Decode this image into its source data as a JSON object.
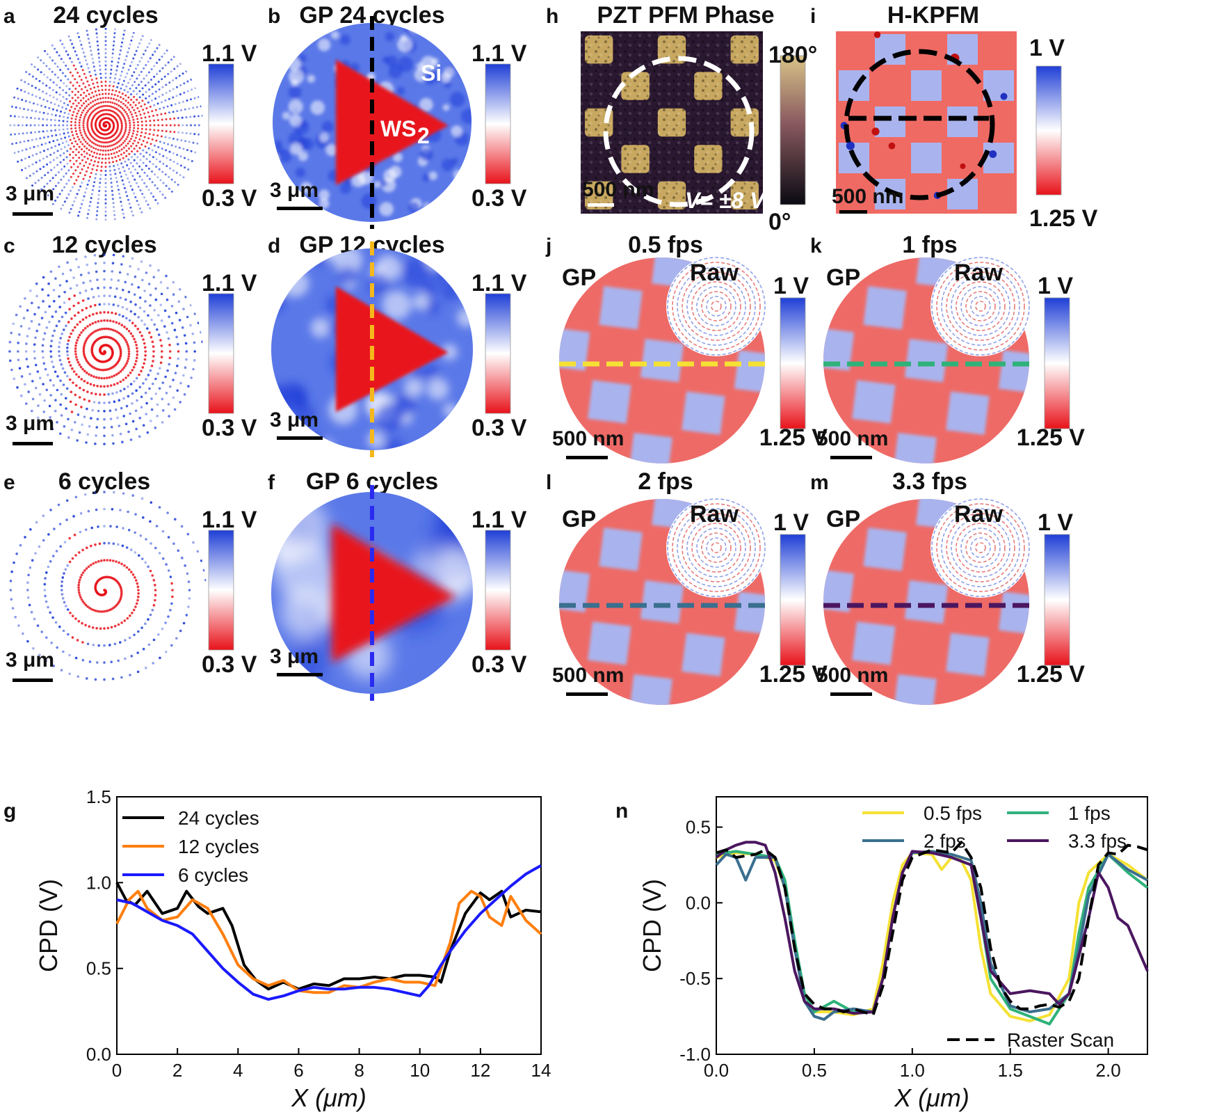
{
  "colors": {
    "cpd_low": "#1f3fd6",
    "cpd_mid": "#ffffff",
    "cpd_high": "#e8121a",
    "pfm_dark": "#2a1830",
    "pfm_light": "#c8a860",
    "line_24": "#000000",
    "line_12": "#ff7f0e",
    "line_6": "#1a1aff",
    "fps_05": "#f5e134",
    "fps_1": "#2fb27a",
    "fps_2": "#3a6f8f",
    "fps_33": "#4b1660",
    "raster": "#000000"
  },
  "panels": [
    {
      "letter": "a",
      "title": "24 cycles",
      "scale_bar": "3 μm",
      "cbar_top": "1.1 V",
      "cbar_bottom": "0.3 V",
      "kind": "spiral",
      "cycles": 24
    },
    {
      "letter": "b",
      "title": "GP 24 cycles",
      "scale_bar": "3 μm",
      "cbar_top": "1.1 V",
      "cbar_bottom": "0.3 V",
      "kind": "gp",
      "cycles": 24,
      "line_color": "#000000",
      "label_si": "Si",
      "label_ws2": "WS",
      "label_ws2_sub": "2"
    },
    {
      "letter": "c",
      "title": "12 cycles",
      "scale_bar": "3 μm",
      "cbar_top": "1.1 V",
      "cbar_bottom": "0.3 V",
      "kind": "spiral",
      "cycles": 12
    },
    {
      "letter": "d",
      "title": "GP 12 cycles",
      "scale_bar": "3 μm",
      "cbar_top": "1.1 V",
      "cbar_bottom": "0.3 V",
      "kind": "gp",
      "cycles": 12,
      "line_color": "#f5b81c"
    },
    {
      "letter": "e",
      "title": "6 cycles",
      "scale_bar": "3 μm",
      "cbar_top": "1.1 V",
      "cbar_bottom": "0.3 V",
      "kind": "spiral",
      "cycles": 6
    },
    {
      "letter": "f",
      "title": "GP 6 cycles",
      "scale_bar": "3 μm",
      "cbar_top": "1.1 V",
      "cbar_bottom": "0.3 V",
      "kind": "gp",
      "cycles": 6,
      "line_color": "#2a2af0"
    },
    {
      "letter": "h",
      "title": "PZT PFM Phase",
      "scale_bar": "500 nm",
      "cbar_top": "180°",
      "cbar_bottom": "0°",
      "kind": "pfm",
      "voltage": "V= ±8 V"
    },
    {
      "letter": "i",
      "title": "H-KPFM",
      "scale_bar": "500 nm",
      "cbar_top": "1 V",
      "cbar_bottom": "1.25 V",
      "kind": "hkpfm"
    },
    {
      "letter": "j",
      "title": "0.5 fps",
      "scale_bar": "500 nm",
      "cbar_top": "1 V",
      "cbar_bottom": "1.25 V",
      "kind": "fps",
      "line_color": "#f5e134",
      "label_gp": "GP",
      "label_raw": "Raw"
    },
    {
      "letter": "k",
      "title": "1 fps",
      "scale_bar": "500 nm",
      "cbar_top": "1 V",
      "cbar_bottom": "1.25 V",
      "kind": "fps",
      "line_color": "#2fb27a",
      "label_gp": "GP",
      "label_raw": "Raw"
    },
    {
      "letter": "l",
      "title": "2 fps",
      "scale_bar": "500 nm",
      "cbar_top": "1 V",
      "cbar_bottom": "1.25 V",
      "kind": "fps",
      "line_color": "#3a6f8f",
      "label_gp": "GP",
      "label_raw": "Raw"
    },
    {
      "letter": "m",
      "title": "3.3 fps",
      "scale_bar": "500 nm",
      "cbar_top": "1 V",
      "cbar_bottom": "1.25 V",
      "kind": "fps",
      "line_color": "#4b1660",
      "label_gp": "GP",
      "label_raw": "Raw"
    }
  ],
  "chart_data": [
    {
      "panel": "g",
      "type": "line",
      "xlabel": "X (μm)",
      "ylabel": "CPD (V)",
      "xlim": [
        0,
        14
      ],
      "ylim": [
        0.0,
        1.5
      ],
      "xticks": [
        "0",
        "2",
        "4",
        "6",
        "8",
        "10",
        "12",
        "14"
      ],
      "yticks": [
        "0.0",
        "0.5",
        "1.0",
        "1.5"
      ],
      "legend_position": "top-left",
      "series": [
        {
          "name": "24 cycles",
          "color": "#000000",
          "x": [
            0,
            0.3,
            0.6,
            1.0,
            1.5,
            2.0,
            2.3,
            2.7,
            3.0,
            3.5,
            3.8,
            4.2,
            4.6,
            5.0,
            5.5,
            6.0,
            6.5,
            7.0,
            7.5,
            8.0,
            8.5,
            9.0,
            9.5,
            10.0,
            10.5,
            10.7,
            11.0,
            11.5,
            12.0,
            12.3,
            12.7,
            13.0,
            13.5,
            14.0
          ],
          "y": [
            1.0,
            0.9,
            0.87,
            0.95,
            0.82,
            0.85,
            0.95,
            0.86,
            0.82,
            0.85,
            0.75,
            0.52,
            0.43,
            0.38,
            0.42,
            0.38,
            0.41,
            0.4,
            0.44,
            0.44,
            0.45,
            0.44,
            0.46,
            0.46,
            0.45,
            0.42,
            0.6,
            0.82,
            0.94,
            0.9,
            0.95,
            0.8,
            0.84,
            0.83
          ]
        },
        {
          "name": "12 cycles",
          "color": "#ff7f0e",
          "x": [
            0,
            0.4,
            0.7,
            1.0,
            1.5,
            2.0,
            2.5,
            3.0,
            3.5,
            4.0,
            4.5,
            5.0,
            5.5,
            6.0,
            6.5,
            7.0,
            7.5,
            8.0,
            8.5,
            9.0,
            9.5,
            10.0,
            10.5,
            11.0,
            11.3,
            11.7,
            12.0,
            12.3,
            12.7,
            13.0,
            13.5,
            14.0
          ],
          "y": [
            0.76,
            0.9,
            0.95,
            0.85,
            0.78,
            0.8,
            0.9,
            0.85,
            0.7,
            0.52,
            0.44,
            0.4,
            0.43,
            0.37,
            0.36,
            0.36,
            0.4,
            0.39,
            0.42,
            0.44,
            0.42,
            0.42,
            0.4,
            0.65,
            0.88,
            0.95,
            0.92,
            0.8,
            0.75,
            0.92,
            0.78,
            0.7
          ]
        },
        {
          "name": "6 cycles",
          "color": "#1a1aff",
          "x": [
            0,
            0.5,
            1.0,
            1.5,
            2.0,
            2.5,
            3.0,
            3.5,
            4.0,
            4.5,
            5.0,
            5.5,
            6.0,
            6.5,
            7.0,
            7.5,
            8.0,
            8.5,
            9.0,
            9.5,
            10.0,
            10.3,
            10.7,
            11.0,
            11.5,
            12.0,
            12.5,
            13.0,
            13.5,
            14.0
          ],
          "y": [
            0.9,
            0.88,
            0.83,
            0.78,
            0.75,
            0.7,
            0.6,
            0.5,
            0.42,
            0.35,
            0.32,
            0.34,
            0.37,
            0.39,
            0.38,
            0.38,
            0.39,
            0.39,
            0.38,
            0.36,
            0.34,
            0.4,
            0.52,
            0.6,
            0.72,
            0.82,
            0.9,
            0.98,
            1.05,
            1.1
          ]
        }
      ]
    },
    {
      "panel": "n",
      "type": "line",
      "xlabel": "X (μm)",
      "ylabel": "CPD (V)",
      "xlim": [
        0.0,
        2.2
      ],
      "ylim": [
        -1.0,
        0.7
      ],
      "xticks": [
        "0.0",
        "0.5",
        "1.0",
        "1.5",
        "2.0"
      ],
      "yticks": [
        "-1.0",
        "-0.5",
        "0.0",
        "0.5"
      ],
      "legend_position": "top-right",
      "series": [
        {
          "name": "0.5 fps",
          "color": "#f5e134",
          "x": [
            0,
            0.1,
            0.2,
            0.3,
            0.35,
            0.4,
            0.45,
            0.5,
            0.6,
            0.7,
            0.8,
            0.85,
            0.9,
            0.95,
            1.0,
            1.1,
            1.15,
            1.2,
            1.25,
            1.3,
            1.35,
            1.4,
            1.5,
            1.6,
            1.7,
            1.8,
            1.85,
            1.9,
            2.0,
            2.1,
            2.2
          ],
          "y": [
            0.3,
            0.33,
            0.32,
            0.28,
            0.1,
            -0.3,
            -0.6,
            -0.72,
            -0.72,
            -0.74,
            -0.7,
            -0.4,
            0.0,
            0.25,
            0.33,
            0.32,
            0.22,
            0.3,
            0.28,
            0.15,
            -0.3,
            -0.6,
            -0.75,
            -0.78,
            -0.74,
            -0.5,
            0.0,
            0.2,
            0.32,
            0.25,
            0.15
          ]
        },
        {
          "name": "1 fps",
          "color": "#2fb27a",
          "x": [
            0,
            0.1,
            0.2,
            0.3,
            0.35,
            0.4,
            0.45,
            0.5,
            0.6,
            0.7,
            0.8,
            0.85,
            0.9,
            0.95,
            1.0,
            1.1,
            1.2,
            1.3,
            1.35,
            1.4,
            1.5,
            1.6,
            1.7,
            1.8,
            1.85,
            1.9,
            2.0,
            2.1,
            2.2
          ],
          "y": [
            0.32,
            0.34,
            0.32,
            0.3,
            0.15,
            -0.25,
            -0.6,
            -0.72,
            -0.65,
            -0.72,
            -0.72,
            -0.5,
            -0.1,
            0.2,
            0.33,
            0.34,
            0.3,
            0.25,
            -0.1,
            -0.5,
            -0.7,
            -0.75,
            -0.8,
            -0.6,
            -0.2,
            0.1,
            0.32,
            0.2,
            0.1
          ]
        },
        {
          "name": "2 fps",
          "color": "#3a6f8f",
          "x": [
            0,
            0.05,
            0.1,
            0.15,
            0.2,
            0.3,
            0.35,
            0.4,
            0.45,
            0.5,
            0.55,
            0.6,
            0.7,
            0.8,
            0.85,
            0.9,
            0.95,
            1.0,
            1.1,
            1.2,
            1.3,
            1.35,
            1.4,
            1.5,
            1.6,
            1.7,
            1.8,
            1.85,
            1.9,
            2.0,
            2.1,
            2.2
          ],
          "y": [
            0.25,
            0.32,
            0.3,
            0.15,
            0.3,
            0.3,
            0.1,
            -0.3,
            -0.65,
            -0.75,
            -0.77,
            -0.72,
            -0.7,
            -0.72,
            -0.5,
            -0.1,
            0.2,
            0.33,
            0.34,
            0.32,
            0.28,
            0.0,
            -0.4,
            -0.68,
            -0.72,
            -0.7,
            -0.6,
            -0.3,
            0.05,
            0.32,
            0.22,
            0.15
          ]
        },
        {
          "name": "3.3 fps",
          "color": "#4b1660",
          "x": [
            0,
            0.05,
            0.1,
            0.15,
            0.2,
            0.25,
            0.3,
            0.35,
            0.4,
            0.45,
            0.5,
            0.6,
            0.7,
            0.8,
            0.85,
            0.9,
            0.95,
            1.0,
            1.1,
            1.2,
            1.3,
            1.35,
            1.4,
            1.5,
            1.6,
            1.7,
            1.75,
            1.8,
            1.9,
            1.95,
            2.0,
            2.05,
            2.1,
            2.15,
            2.2
          ],
          "y": [
            0.3,
            0.35,
            0.38,
            0.4,
            0.4,
            0.38,
            0.2,
            -0.1,
            -0.45,
            -0.65,
            -0.7,
            -0.7,
            -0.73,
            -0.72,
            -0.5,
            -0.1,
            0.2,
            0.34,
            0.33,
            0.3,
            0.25,
            -0.1,
            -0.45,
            -0.6,
            -0.58,
            -0.6,
            -0.67,
            -0.6,
            -0.1,
            0.2,
            0.1,
            -0.1,
            -0.15,
            -0.3,
            -0.45
          ]
        },
        {
          "name": "Raster Scan",
          "color": "#000000",
          "dashed": true,
          "x": [
            0,
            0.05,
            0.1,
            0.2,
            0.25,
            0.3,
            0.35,
            0.4,
            0.45,
            0.5,
            0.55,
            0.6,
            0.65,
            0.7,
            0.75,
            0.8,
            0.85,
            0.9,
            0.95,
            1.0,
            1.1,
            1.2,
            1.25,
            1.3,
            1.35,
            1.4,
            1.45,
            1.5,
            1.55,
            1.6,
            1.65,
            1.7,
            1.75,
            1.8,
            1.85,
            1.9,
            1.95,
            2.0,
            2.05,
            2.1,
            2.15,
            2.2
          ],
          "y": [
            0.33,
            0.35,
            0.3,
            0.32,
            0.35,
            0.3,
            0.1,
            -0.3,
            -0.6,
            -0.67,
            -0.7,
            -0.7,
            -0.72,
            -0.7,
            -0.72,
            -0.74,
            -0.55,
            -0.2,
            0.15,
            0.3,
            0.35,
            0.33,
            0.4,
            0.3,
            0.1,
            -0.3,
            -0.55,
            -0.65,
            -0.7,
            -0.7,
            -0.68,
            -0.67,
            -0.69,
            -0.65,
            -0.5,
            -0.1,
            0.25,
            0.33,
            0.32,
            0.38,
            0.37,
            0.35
          ]
        }
      ]
    }
  ]
}
